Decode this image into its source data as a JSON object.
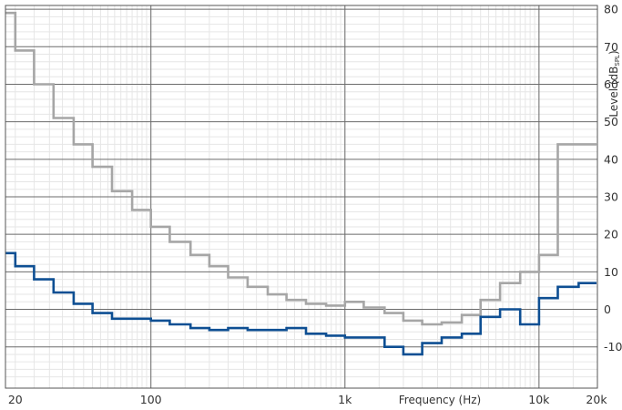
{
  "chart_data": {
    "type": "line",
    "step": true,
    "title": "",
    "xlabel": "Frequency (Hz)",
    "ylabel_main": "Level (dB",
    "ylabel_sub": "SPL",
    "ylabel_close": ")",
    "xscale": "log",
    "xlim": [
      17.8,
      20000
    ],
    "ylim": [
      -21,
      81
    ],
    "grid": true,
    "x_tick_labels": [
      {
        "value": 20,
        "label": "20"
      },
      {
        "value": 100,
        "label": "100"
      },
      {
        "value": 1000,
        "label": "1k"
      },
      {
        "value": 10000,
        "label": "10k"
      },
      {
        "value": 20000,
        "label": "20k"
      }
    ],
    "y_ticks": [
      -10,
      0,
      10,
      20,
      30,
      40,
      50,
      60,
      70,
      80
    ],
    "series": [
      {
        "color": "#a6a6a6",
        "x": [
          17.8,
          20,
          25,
          31.5,
          40,
          50,
          63,
          80,
          100,
          125,
          160,
          200,
          250,
          315,
          400,
          500,
          630,
          800,
          1000,
          1250,
          1600,
          2000,
          2500,
          3150,
          4000,
          5000,
          6300,
          8000,
          10000,
          12500,
          16000,
          20000
        ],
        "values": [
          79,
          69,
          60,
          51,
          44,
          38,
          31.5,
          26.5,
          22,
          18,
          14.5,
          11.5,
          8.5,
          6,
          4,
          2.5,
          1.5,
          1,
          2,
          0.5,
          -1,
          -3,
          -4,
          -3.5,
          -1.5,
          2.5,
          7,
          10,
          14.5,
          44,
          44,
          44
        ]
      },
      {
        "color": "#0e4f93",
        "x": [
          17.8,
          20,
          25,
          31.5,
          40,
          50,
          63,
          80,
          100,
          125,
          160,
          200,
          250,
          315,
          400,
          500,
          630,
          800,
          1000,
          1250,
          1600,
          2000,
          2500,
          3150,
          4000,
          5000,
          6300,
          8000,
          10000,
          12500,
          16000,
          20000
        ],
        "values": [
          15,
          11.5,
          8,
          4.5,
          1.5,
          -1,
          -2.5,
          -2.5,
          -3,
          -4,
          -5,
          -5.5,
          -5,
          -5.5,
          -5.5,
          -5,
          -6.5,
          -7,
          -7.5,
          -7.5,
          -10,
          -12,
          -9,
          -7.5,
          -6.5,
          -2,
          0,
          -4,
          3,
          6,
          7,
          7
        ]
      }
    ]
  }
}
